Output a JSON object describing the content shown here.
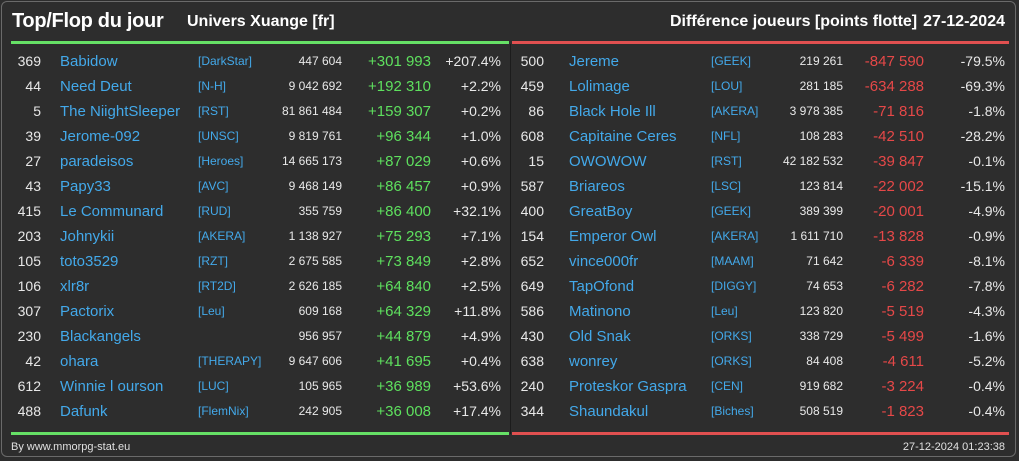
{
  "header": {
    "title": "Top/Flop du jour",
    "universe": "Univers Xuange [fr]",
    "subtitle": "Différence joueurs [points flotte]",
    "date": "27-12-2024"
  },
  "colors": {
    "positive": "#5ee05e",
    "negative": "#e64848",
    "link": "#43a9ea",
    "top_line": "#66e066",
    "flop_line": "#e05050",
    "background": "#2d2d2d"
  },
  "top": [
    {
      "rank": "369",
      "name": "Babidow",
      "alliance": "[DarkStar]",
      "total": "447 604",
      "diff": "+301 993",
      "pct": "+207.4%"
    },
    {
      "rank": "44",
      "name": "Need Deut",
      "alliance": "[N-H]",
      "total": "9 042 692",
      "diff": "+192 310",
      "pct": "+2.2%"
    },
    {
      "rank": "5",
      "name": "The NiightSleeper",
      "alliance": "[RST]",
      "total": "81 861 484",
      "diff": "+159 307",
      "pct": "+0.2%"
    },
    {
      "rank": "39",
      "name": "Jerome-092",
      "alliance": "[UNSC]",
      "total": "9 819 761",
      "diff": "+96 344",
      "pct": "+1.0%"
    },
    {
      "rank": "27",
      "name": "paradeisos",
      "alliance": "[Heroes]",
      "total": "14 665 173",
      "diff": "+87 029",
      "pct": "+0.6%"
    },
    {
      "rank": "43",
      "name": "Papy33",
      "alliance": "[AVC]",
      "total": "9 468 149",
      "diff": "+86 457",
      "pct": "+0.9%"
    },
    {
      "rank": "415",
      "name": "Le Communard",
      "alliance": "[RUD]",
      "total": "355 759",
      "diff": "+86 400",
      "pct": "+32.1%"
    },
    {
      "rank": "203",
      "name": "Johnykii",
      "alliance": "[AKERA]",
      "total": "1 138 927",
      "diff": "+75 293",
      "pct": "+7.1%"
    },
    {
      "rank": "105",
      "name": "toto3529",
      "alliance": "[RZT]",
      "total": "2 675 585",
      "diff": "+73 849",
      "pct": "+2.8%"
    },
    {
      "rank": "106",
      "name": "xlr8r",
      "alliance": "[RT2D]",
      "total": "2 626 185",
      "diff": "+64 840",
      "pct": "+2.5%"
    },
    {
      "rank": "307",
      "name": "Pactorix",
      "alliance": "[Leu]",
      "total": "609 168",
      "diff": "+64 329",
      "pct": "+11.8%"
    },
    {
      "rank": "230",
      "name": "Blackangels",
      "alliance": "",
      "total": "956 957",
      "diff": "+44 879",
      "pct": "+4.9%"
    },
    {
      "rank": "42",
      "name": "ohara",
      "alliance": "[THERAPY]",
      "total": "9 647 606",
      "diff": "+41 695",
      "pct": "+0.4%"
    },
    {
      "rank": "612",
      "name": "Winnie l ourson",
      "alliance": "[LUC]",
      "total": "105 965",
      "diff": "+36 989",
      "pct": "+53.6%"
    },
    {
      "rank": "488",
      "name": "Dafunk",
      "alliance": "[FlemNix]",
      "total": "242 905",
      "diff": "+36 008",
      "pct": "+17.4%"
    }
  ],
  "flop": [
    {
      "rank": "500",
      "name": "Jereme",
      "alliance": "[GEEK]",
      "total": "219 261",
      "diff": "-847 590",
      "pct": "-79.5%"
    },
    {
      "rank": "459",
      "name": "Lolimage",
      "alliance": "[LOU]",
      "total": "281 185",
      "diff": "-634 288",
      "pct": "-69.3%"
    },
    {
      "rank": "86",
      "name": "Black Hole Ill",
      "alliance": "[AKERA]",
      "total": "3 978 385",
      "diff": "-71 816",
      "pct": "-1.8%"
    },
    {
      "rank": "608",
      "name": "Capitaine Ceres",
      "alliance": "[NFL]",
      "total": "108 283",
      "diff": "-42 510",
      "pct": "-28.2%"
    },
    {
      "rank": "15",
      "name": "OWOWOW",
      "alliance": "[RST]",
      "total": "42 182 532",
      "diff": "-39 847",
      "pct": "-0.1%"
    },
    {
      "rank": "587",
      "name": "Briareos",
      "alliance": "[LSC]",
      "total": "123 814",
      "diff": "-22 002",
      "pct": "-15.1%"
    },
    {
      "rank": "400",
      "name": "GreatBoy",
      "alliance": "[GEEK]",
      "total": "389 399",
      "diff": "-20 001",
      "pct": "-4.9%"
    },
    {
      "rank": "154",
      "name": "Emperor Owl",
      "alliance": "[AKERA]",
      "total": "1 611 710",
      "diff": "-13 828",
      "pct": "-0.9%"
    },
    {
      "rank": "652",
      "name": "vince000fr",
      "alliance": "[MAAM]",
      "total": "71 642",
      "diff": "-6 339",
      "pct": "-8.1%"
    },
    {
      "rank": "649",
      "name": "TapOfond",
      "alliance": "[DIGGY]",
      "total": "74 653",
      "diff": "-6 282",
      "pct": "-7.8%"
    },
    {
      "rank": "586",
      "name": "Matinono",
      "alliance": "[Leu]",
      "total": "123 820",
      "diff": "-5 519",
      "pct": "-4.3%"
    },
    {
      "rank": "430",
      "name": "Old Snak",
      "alliance": "[ORKS]",
      "total": "338 729",
      "diff": "-5 499",
      "pct": "-1.6%"
    },
    {
      "rank": "638",
      "name": "wonrey",
      "alliance": "[ORKS]",
      "total": "84 408",
      "diff": "-4 611",
      "pct": "-5.2%"
    },
    {
      "rank": "240",
      "name": "Proteskor Gaspra",
      "alliance": "[CEN]",
      "total": "919 682",
      "diff": "-3 224",
      "pct": "-0.4%"
    },
    {
      "rank": "344",
      "name": "Shaundakul",
      "alliance": "[Biches]",
      "total": "508 519",
      "diff": "-1 823",
      "pct": "-0.4%"
    }
  ],
  "footer": {
    "credit": "By www.mmorpg-stat.eu",
    "timestamp": "27-12-2024 01:23:38"
  }
}
